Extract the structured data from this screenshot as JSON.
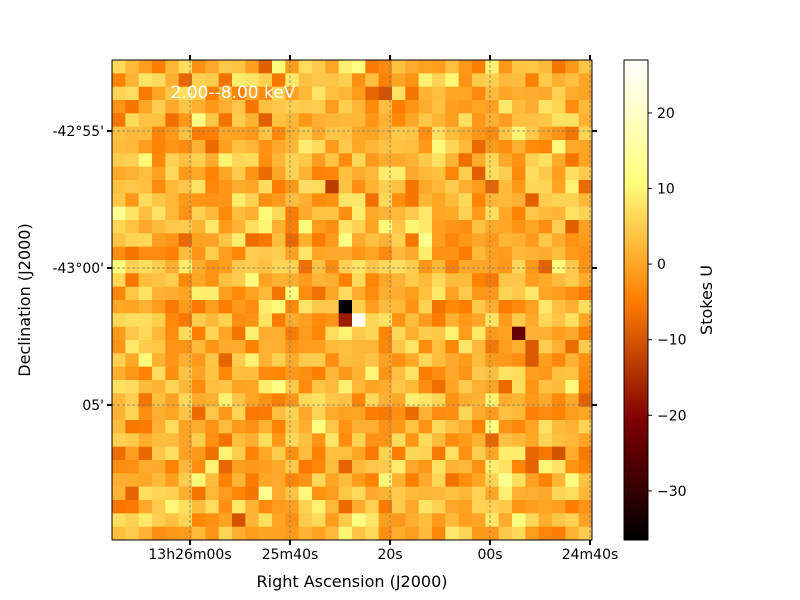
{
  "chart_data": {
    "type": "heatmap",
    "title": "",
    "annotation": "2.00--8.00 keV",
    "xlabel": "Right Ascension (J2000)",
    "ylabel": "Declination (J2000)",
    "colorbar_label": "Stokes U",
    "colormap": "afmhot",
    "colorbar_range": [
      -36.5,
      27
    ],
    "colorbar_ticks": [
      20,
      10,
      0,
      -10,
      -20,
      -30
    ],
    "colorbar_tick_labels": [
      "20",
      "10",
      "0",
      "−10",
      "−20",
      "−30"
    ],
    "x_tick_labels": [
      "13h26m00s",
      "25m40s",
      "20s",
      "00s",
      "24m40s"
    ],
    "y_tick_labels": [
      "-42°55'",
      "-43°00'",
      "05'"
    ],
    "grid": true,
    "grid_size": [
      36,
      36
    ],
    "background_level": 1.5,
    "noise_amplitude": 4.5,
    "notable_pixels": [
      {
        "col": 17,
        "row": 18,
        "value": -36
      },
      {
        "col": 18,
        "row": 19,
        "value": 26
      },
      {
        "col": 17,
        "row": 19,
        "value": -17
      },
      {
        "col": 30,
        "row": 20,
        "value": -24
      },
      {
        "col": 18,
        "row": 18,
        "value": 5
      },
      {
        "col": 16,
        "row": 9,
        "value": -13
      }
    ]
  }
}
